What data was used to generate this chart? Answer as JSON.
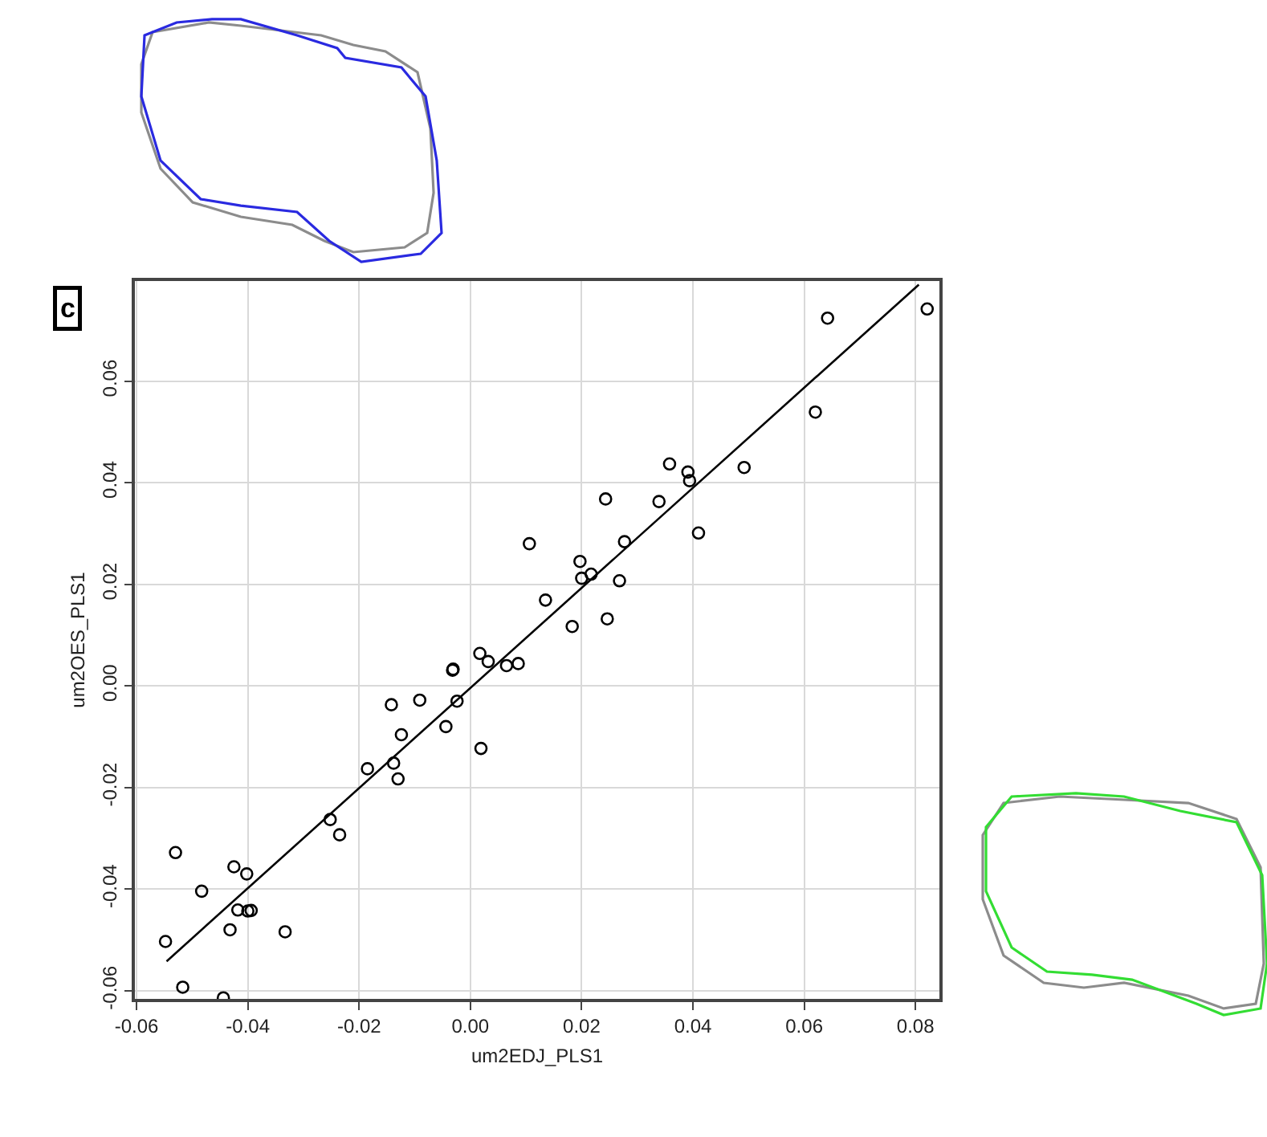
{
  "chart_data": {
    "type": "scatter",
    "xlabel": "um2EDJ_PLS1",
    "ylabel": "um2OES_PLS1",
    "xlim": [
      -0.0603,
      0.0843
    ],
    "ylim": [
      -0.0616,
      0.0797
    ],
    "xticks": [
      -0.06,
      -0.04,
      -0.02,
      {
        "value": 0,
        "label": "0.00"
      },
      0.02,
      0.04,
      0.06,
      0.08
    ],
    "yticks": [
      -0.06,
      -0.04,
      -0.02,
      {
        "value": 0,
        "label": "0.00"
      },
      0.02,
      0.04,
      0.06
    ],
    "grid": true,
    "marker": "circle",
    "annotations": [
      "c"
    ],
    "series": [
      {
        "color": "#000000",
        "x": [
          -0.053,
          -0.0483,
          -0.0548,
          -0.0517,
          -0.0444,
          -0.0425,
          -0.0402,
          -0.0418,
          -0.04,
          -0.0394,
          -0.0432,
          -0.0333,
          -0.0252,
          -0.0235,
          -0.0185,
          -0.0142,
          -0.0091,
          -0.0124,
          -0.0138,
          -0.013,
          -0.0032,
          -0.0031,
          -0.0024,
          -0.0044,
          0.0017,
          0.0032,
          0.0065,
          0.0086,
          0.0019,
          0.0106,
          0.0135,
          0.0183,
          0.0197,
          0.02,
          0.0217,
          0.0246,
          0.0268,
          0.0277,
          0.0243,
          0.0339,
          0.0358,
          0.0391,
          0.0394,
          0.041,
          0.0492,
          0.062,
          0.0642,
          0.0821
        ],
        "values": [
          -0.0328,
          -0.0404,
          -0.0503,
          -0.0593,
          -0.0614,
          -0.0356,
          -0.037,
          -0.0441,
          -0.0443,
          -0.0442,
          -0.048,
          -0.0484,
          -0.0263,
          -0.0293,
          -0.0163,
          -0.0037,
          -0.0028,
          -0.0096,
          -0.0152,
          -0.0183,
          0.0031,
          0.0033,
          -0.003,
          -0.008,
          0.0064,
          0.0048,
          0.004,
          0.0044,
          -0.0123,
          0.028,
          0.0169,
          0.0117,
          0.0245,
          0.0212,
          0.022,
          0.0132,
          0.0207,
          0.0284,
          0.0368,
          0.0363,
          0.0437,
          0.0421,
          0.0404,
          0.0301,
          0.043,
          0.0539,
          0.0724,
          0.0742
        ]
      },
      {
        "type": "line",
        "color": "#000000",
        "marker": "none",
        "x": [
          -0.0546,
          0.0806
        ],
        "values": [
          -0.0542,
          0.079
        ]
      }
    ]
  }
}
